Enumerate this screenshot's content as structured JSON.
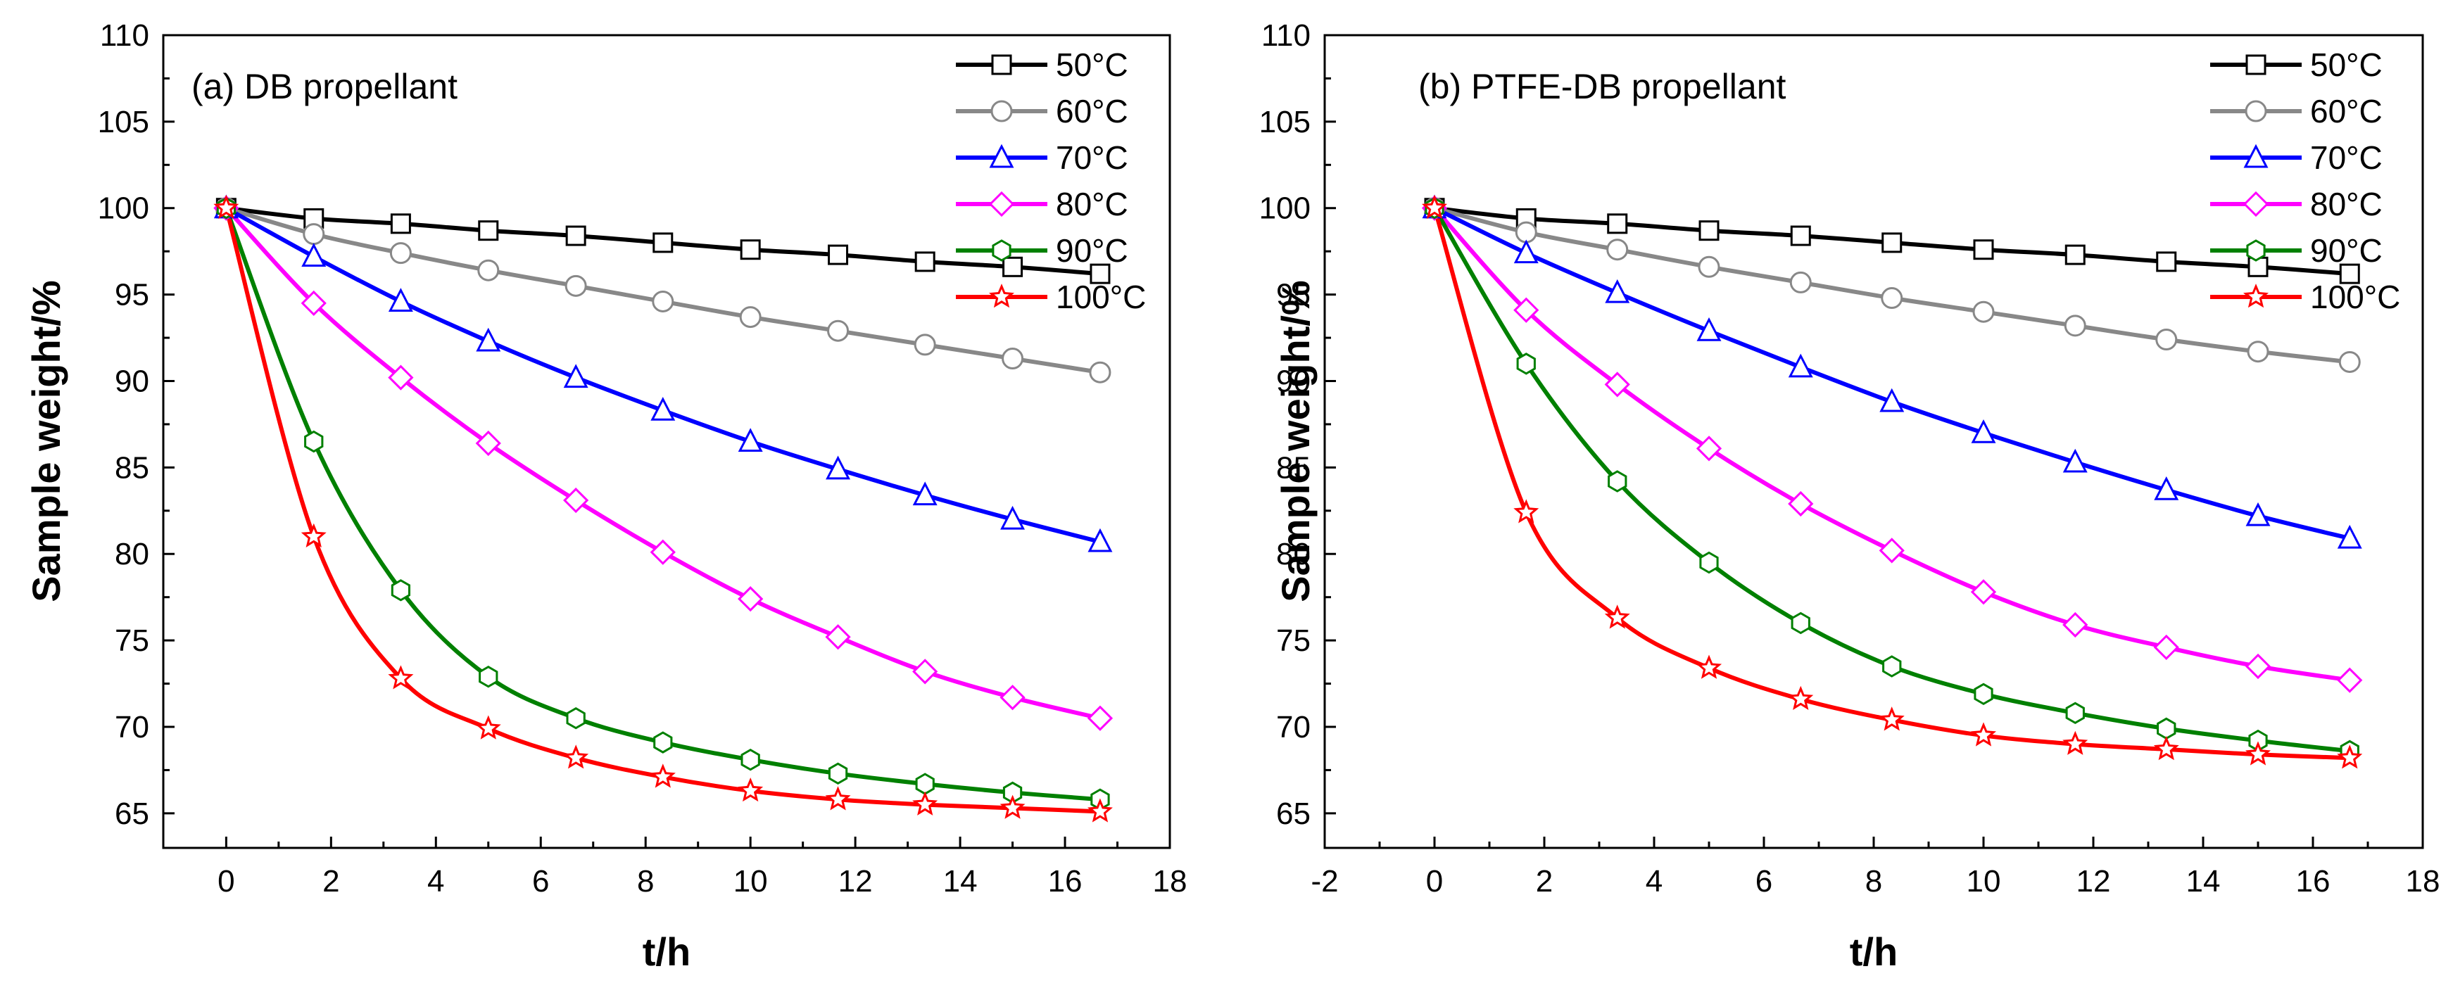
{
  "chart_data": [
    {
      "type": "line",
      "title": "(a) DB propellant",
      "xlabel": "t/h",
      "ylabel": "Sample weight/%",
      "xlim": [
        -1.2,
        18
      ],
      "ylim": [
        63,
        110
      ],
      "xticks": [
        0,
        2,
        4,
        6,
        8,
        10,
        12,
        14,
        16,
        18
      ],
      "yticks": [
        65,
        70,
        75,
        80,
        85,
        90,
        95,
        100,
        105,
        110
      ],
      "legend_position": "top-right",
      "x": [
        0,
        1.67,
        3.33,
        5,
        6.67,
        8.33,
        10,
        11.67,
        13.33,
        15,
        16.67
      ],
      "series": [
        {
          "name": "50°C",
          "color": "#000000",
          "marker": "square",
          "values": [
            100,
            99.4,
            99.1,
            98.7,
            98.4,
            98.0,
            97.6,
            97.3,
            96.9,
            96.6,
            96.2
          ]
        },
        {
          "name": "60°C",
          "color": "#888888",
          "marker": "circle",
          "values": [
            100,
            98.5,
            97.4,
            96.4,
            95.5,
            94.6,
            93.7,
            92.9,
            92.1,
            91.3,
            90.5
          ]
        },
        {
          "name": "70°C",
          "color": "#0000ff",
          "marker": "triangle",
          "values": [
            100,
            97.2,
            94.6,
            92.3,
            90.2,
            88.3,
            86.5,
            84.9,
            83.4,
            82.0,
            80.7
          ]
        },
        {
          "name": "80°C",
          "color": "#ff00ff",
          "marker": "diamond",
          "values": [
            100,
            94.5,
            90.2,
            86.4,
            83.1,
            80.1,
            77.4,
            75.2,
            73.2,
            71.7,
            70.5
          ]
        },
        {
          "name": "90°C",
          "color": "#008000",
          "marker": "hexagon",
          "values": [
            100,
            86.5,
            77.9,
            72.9,
            70.5,
            69.1,
            68.1,
            67.3,
            66.7,
            66.2,
            65.8
          ]
        },
        {
          "name": "100°C",
          "color": "#ff0000",
          "marker": "star",
          "values": [
            100,
            81.0,
            72.8,
            69.9,
            68.2,
            67.1,
            66.3,
            65.8,
            65.5,
            65.3,
            65.1
          ]
        }
      ]
    },
    {
      "type": "line",
      "title": "(b) PTFE-DB propellant",
      "xlabel": "t/h",
      "ylabel": "Sample weight/%",
      "xlim": [
        -2,
        18
      ],
      "ylim": [
        63,
        110
      ],
      "xticks": [
        -2,
        0,
        2,
        4,
        6,
        8,
        10,
        12,
        14,
        16,
        18
      ],
      "yticks": [
        65,
        70,
        75,
        80,
        85,
        90,
        95,
        100,
        105,
        110
      ],
      "legend_position": "top-right",
      "x": [
        0,
        1.67,
        3.33,
        5,
        6.67,
        8.33,
        10,
        11.67,
        13.33,
        15,
        16.67
      ],
      "series": [
        {
          "name": "50°C",
          "color": "#000000",
          "marker": "square",
          "values": [
            100,
            99.4,
            99.1,
            98.7,
            98.4,
            98.0,
            97.6,
            97.3,
            96.9,
            96.6,
            96.2
          ]
        },
        {
          "name": "60°C",
          "color": "#888888",
          "marker": "circle",
          "values": [
            100,
            98.6,
            97.6,
            96.6,
            95.7,
            94.8,
            94.0,
            93.2,
            92.4,
            91.7,
            91.1
          ]
        },
        {
          "name": "70°C",
          "color": "#0000ff",
          "marker": "triangle",
          "values": [
            100,
            97.4,
            95.1,
            92.9,
            90.8,
            88.8,
            87.0,
            85.3,
            83.7,
            82.2,
            80.9
          ]
        },
        {
          "name": "80°C",
          "color": "#ff00ff",
          "marker": "diamond",
          "values": [
            100,
            94.1,
            89.8,
            86.1,
            82.9,
            80.2,
            77.8,
            75.9,
            74.6,
            73.5,
            72.7
          ]
        },
        {
          "name": "90°C",
          "color": "#008000",
          "marker": "hexagon",
          "values": [
            100,
            91.0,
            84.2,
            79.5,
            76.0,
            73.5,
            71.9,
            70.8,
            69.9,
            69.2,
            68.6
          ]
        },
        {
          "name": "100°C",
          "color": "#ff0000",
          "marker": "star",
          "values": [
            100,
            82.4,
            76.3,
            73.4,
            71.6,
            70.4,
            69.5,
            69.0,
            68.7,
            68.4,
            68.2
          ]
        }
      ]
    }
  ]
}
